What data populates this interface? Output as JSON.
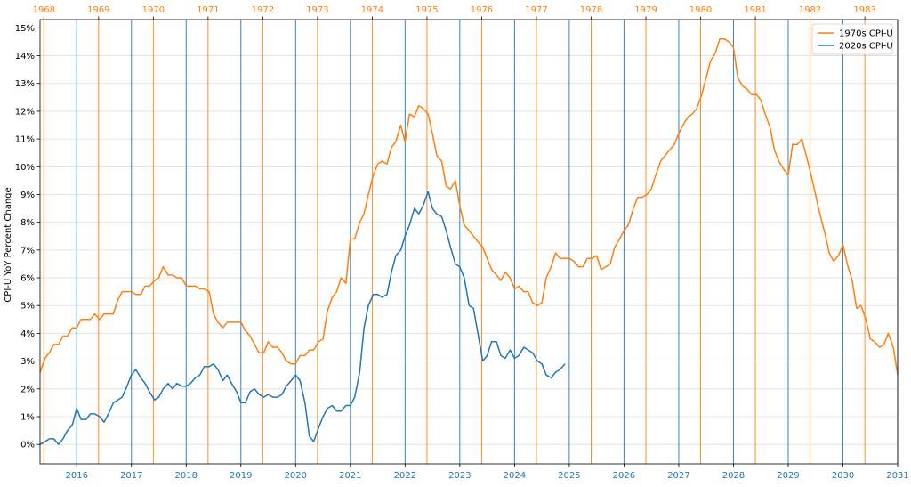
{
  "chart_data": {
    "type": "line",
    "ylabel": "CPI-U YoY Percent Change",
    "xlabel": "",
    "ylim": [
      -0.7,
      15.3
    ],
    "yticks": [
      0,
      1,
      2,
      3,
      4,
      5,
      6,
      7,
      8,
      9,
      10,
      11,
      12,
      13,
      14,
      15
    ],
    "ytick_suffix": "%",
    "grid": true,
    "legend_position": "top-right",
    "colors": {
      "series_1970s": "#ff7f0e",
      "series_2020s": "#1f77b4"
    },
    "bottom_axis": {
      "ticks": [
        "2016",
        "2017",
        "2018",
        "2019",
        "2020",
        "2021",
        "2022",
        "2023",
        "2024",
        "2025",
        "2026",
        "2027",
        "2028",
        "2029",
        "2030",
        "2031"
      ],
      "start": "2015.33",
      "end": "2031.0"
    },
    "top_axis": {
      "ticks": [
        "1968",
        "1969",
        "1970",
        "1971",
        "1972",
        "1973",
        "1974",
        "1975",
        "1976",
        "1977",
        "1978",
        "1979",
        "1980",
        "1981",
        "1982",
        "1983"
      ],
      "offset_note_value": 47.4
    },
    "series": [
      {
        "name": "1970s CPI-U",
        "x": [
          2015.33,
          2015.42,
          2015.5,
          2015.58,
          2015.67,
          2015.75,
          2015.83,
          2015.92,
          2016.0,
          2016.08,
          2016.17,
          2016.25,
          2016.33,
          2016.42,
          2016.5,
          2016.58,
          2016.67,
          2016.75,
          2016.83,
          2016.92,
          2017.0,
          2017.08,
          2017.17,
          2017.25,
          2017.33,
          2017.42,
          2017.5,
          2017.58,
          2017.67,
          2017.75,
          2017.83,
          2017.92,
          2018.0,
          2018.08,
          2018.17,
          2018.25,
          2018.33,
          2018.42,
          2018.5,
          2018.58,
          2018.67,
          2018.75,
          2018.83,
          2018.92,
          2019.0,
          2019.08,
          2019.17,
          2019.25,
          2019.33,
          2019.42,
          2019.5,
          2019.58,
          2019.67,
          2019.75,
          2019.83,
          2019.92,
          2020.0,
          2020.08,
          2020.17,
          2020.25,
          2020.33,
          2020.42,
          2020.5,
          2020.58,
          2020.67,
          2020.75,
          2020.83,
          2020.92,
          2021.0,
          2021.08,
          2021.17,
          2021.25,
          2021.33,
          2021.42,
          2021.5,
          2021.58,
          2021.67,
          2021.75,
          2021.83,
          2021.92,
          2022.0,
          2022.08,
          2022.17,
          2022.25,
          2022.33,
          2022.42,
          2022.5,
          2022.58,
          2022.67,
          2022.75,
          2022.83,
          2022.92,
          2023.0,
          2023.08,
          2023.17,
          2023.25,
          2023.33,
          2023.42,
          2023.5,
          2023.58,
          2023.67,
          2023.75,
          2023.83,
          2023.92,
          2024.0,
          2024.08,
          2024.17,
          2024.25,
          2024.33,
          2024.42,
          2024.5,
          2024.58,
          2024.67,
          2024.75,
          2024.83,
          2024.92,
          2025.0,
          2025.08,
          2025.17,
          2025.25,
          2025.33,
          2025.42,
          2025.5,
          2025.58,
          2025.67,
          2025.75,
          2025.83,
          2025.92,
          2026.0,
          2026.08,
          2026.17,
          2026.25,
          2026.33,
          2026.42,
          2026.5,
          2026.58,
          2026.67,
          2026.75,
          2026.83,
          2026.92,
          2027.0,
          2027.08,
          2027.17,
          2027.25,
          2027.33,
          2027.42,
          2027.5,
          2027.58,
          2027.67,
          2027.75,
          2027.83,
          2027.92,
          2028.0,
          2028.08,
          2028.17,
          2028.25,
          2028.33,
          2028.42,
          2028.5,
          2028.58,
          2028.67,
          2028.75,
          2028.83,
          2028.92,
          2029.0,
          2029.08,
          2029.17,
          2029.25,
          2029.33,
          2029.42,
          2029.5,
          2029.58,
          2029.67,
          2029.75,
          2029.83,
          2029.92,
          2030.0,
          2030.08,
          2030.17,
          2030.25,
          2030.33,
          2030.42,
          2030.5,
          2030.58,
          2030.67,
          2030.75,
          2030.83,
          2030.92,
          2031.0
        ],
        "values": [
          2.6,
          3.1,
          3.3,
          3.6,
          3.6,
          3.9,
          3.9,
          4.2,
          4.2,
          4.5,
          4.5,
          4.5,
          4.7,
          4.5,
          4.7,
          4.7,
          4.7,
          5.2,
          5.5,
          5.5,
          5.5,
          5.4,
          5.4,
          5.7,
          5.7,
          5.9,
          6.0,
          6.4,
          6.1,
          6.1,
          6.0,
          6.0,
          5.7,
          5.7,
          5.7,
          5.6,
          5.6,
          5.5,
          4.7,
          4.4,
          4.2,
          4.4,
          4.4,
          4.4,
          4.4,
          4.1,
          3.9,
          3.6,
          3.3,
          3.3,
          3.7,
          3.5,
          3.5,
          3.3,
          3.0,
          2.9,
          2.9,
          3.2,
          3.2,
          3.4,
          3.4,
          3.7,
          3.8,
          4.8,
          5.3,
          5.5,
          6.0,
          5.8,
          7.4,
          7.4,
          8.0,
          8.3,
          9.0,
          9.7,
          10.1,
          10.2,
          10.1,
          10.7,
          10.9,
          11.5,
          10.9,
          11.9,
          11.8,
          12.2,
          12.1,
          11.9,
          11.2,
          10.4,
          10.2,
          9.3,
          9.2,
          9.5,
          8.6,
          7.9,
          7.7,
          7.5,
          7.3,
          7.1,
          6.7,
          6.3,
          6.1,
          5.9,
          6.2,
          6.0,
          5.6,
          5.7,
          5.5,
          5.5,
          5.1,
          5.0,
          5.1,
          6.0,
          6.4,
          6.9,
          6.7,
          6.7,
          6.7,
          6.6,
          6.4,
          6.4,
          6.7,
          6.7,
          6.8,
          6.3,
          6.4,
          6.5,
          7.1,
          7.4,
          7.7,
          7.9,
          8.5,
          8.9,
          8.9,
          9.0,
          9.2,
          9.7,
          10.2,
          10.4,
          10.6,
          10.8,
          11.2,
          11.5,
          11.8,
          11.9,
          12.1,
          12.6,
          13.2,
          13.8,
          14.1,
          14.6,
          14.6,
          14.5,
          14.3,
          13.2,
          12.9,
          12.8,
          12.6,
          12.6,
          12.4,
          11.9,
          11.4,
          10.6,
          10.2,
          9.9,
          9.7,
          10.8,
          10.8,
          11.0,
          10.4,
          9.7,
          9.0,
          8.3,
          7.6,
          6.9,
          6.6,
          6.8,
          7.2,
          6.5,
          5.9,
          4.9,
          5.0,
          4.5,
          3.8,
          3.7,
          3.5,
          3.6,
          4.0,
          3.5,
          2.5
        ]
      },
      {
        "name": "2020s CPI-U",
        "x": [
          2015.33,
          2015.42,
          2015.5,
          2015.58,
          2015.67,
          2015.75,
          2015.83,
          2015.92,
          2016.0,
          2016.08,
          2016.17,
          2016.25,
          2016.33,
          2016.42,
          2016.5,
          2016.58,
          2016.67,
          2016.75,
          2016.83,
          2016.92,
          2017.0,
          2017.08,
          2017.17,
          2017.25,
          2017.33,
          2017.42,
          2017.5,
          2017.58,
          2017.67,
          2017.75,
          2017.83,
          2017.92,
          2018.0,
          2018.08,
          2018.17,
          2018.25,
          2018.33,
          2018.42,
          2018.5,
          2018.58,
          2018.67,
          2018.75,
          2018.83,
          2018.92,
          2019.0,
          2019.08,
          2019.17,
          2019.25,
          2019.33,
          2019.42,
          2019.5,
          2019.58,
          2019.67,
          2019.75,
          2019.83,
          2019.92,
          2020.0,
          2020.08,
          2020.17,
          2020.25,
          2020.33,
          2020.42,
          2020.5,
          2020.58,
          2020.67,
          2020.75,
          2020.83,
          2020.92,
          2021.0,
          2021.08,
          2021.17,
          2021.25,
          2021.33,
          2021.42,
          2021.5,
          2021.58,
          2021.67,
          2021.75,
          2021.83,
          2021.92,
          2022.0,
          2022.08,
          2022.17,
          2022.25,
          2022.33,
          2022.42,
          2022.5,
          2022.58,
          2022.67,
          2022.75,
          2022.83,
          2022.92,
          2023.0,
          2023.08,
          2023.17,
          2023.25,
          2023.33,
          2023.42,
          2023.5,
          2023.58,
          2023.67,
          2023.75,
          2023.83,
          2023.92,
          2024.0,
          2024.08,
          2024.17,
          2024.25,
          2024.33,
          2024.42,
          2024.5,
          2024.58,
          2024.67,
          2024.75,
          2024.83,
          2024.92
        ],
        "values": [
          0.0,
          0.1,
          0.2,
          0.2,
          0.0,
          0.2,
          0.5,
          0.7,
          1.3,
          0.9,
          0.9,
          1.1,
          1.1,
          1.0,
          0.8,
          1.1,
          1.5,
          1.6,
          1.7,
          2.1,
          2.5,
          2.7,
          2.4,
          2.2,
          1.9,
          1.6,
          1.7,
          2.0,
          2.2,
          2.0,
          2.2,
          2.1,
          2.1,
          2.2,
          2.4,
          2.5,
          2.8,
          2.8,
          2.9,
          2.7,
          2.3,
          2.5,
          2.2,
          1.9,
          1.5,
          1.5,
          1.9,
          2.0,
          1.8,
          1.7,
          1.8,
          1.7,
          1.7,
          1.8,
          2.1,
          2.3,
          2.5,
          2.3,
          1.5,
          0.3,
          0.1,
          0.6,
          1.0,
          1.3,
          1.4,
          1.2,
          1.2,
          1.4,
          1.4,
          1.7,
          2.6,
          4.2,
          5.0,
          5.4,
          5.4,
          5.3,
          5.4,
          6.2,
          6.8,
          7.0,
          7.5,
          7.9,
          8.5,
          8.3,
          8.6,
          9.1,
          8.5,
          8.3,
          8.2,
          7.7,
          7.1,
          6.5,
          6.4,
          6.0,
          5.0,
          4.9,
          4.0,
          3.0,
          3.2,
          3.7,
          3.7,
          3.2,
          3.1,
          3.4,
          3.1,
          3.2,
          3.5,
          3.4,
          3.3,
          3.0,
          2.9,
          2.5,
          2.4,
          2.6,
          2.7,
          2.9
        ]
      }
    ]
  }
}
